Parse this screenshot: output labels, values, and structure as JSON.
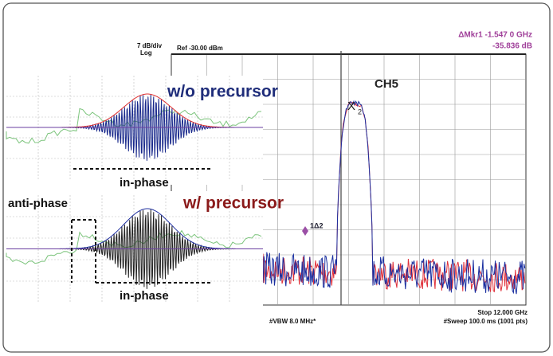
{
  "spectrum": {
    "scale": "7 dB/div",
    "scale_type": "Log",
    "reference": "Ref -30.00 dBm",
    "marker_delta": "ΔMkr1 -1.547 0 GHz",
    "marker_level": "-35.836 dB",
    "channel": "CH5",
    "marker_main": "X",
    "marker_main_index": "2",
    "marker_delta_label": "1Δ2",
    "stop": "Stop 12.000 GHz",
    "vbw": "#VBW 8.0 MHz*",
    "sweep": "#Sweep 100.0 ms (1001 pts)"
  },
  "insets": [
    {
      "title": "w/o precursor",
      "labels": [
        "in-phase"
      ]
    },
    {
      "title": "w/ precursor",
      "labels": [
        "anti-phase",
        "in-phase"
      ]
    }
  ]
}
